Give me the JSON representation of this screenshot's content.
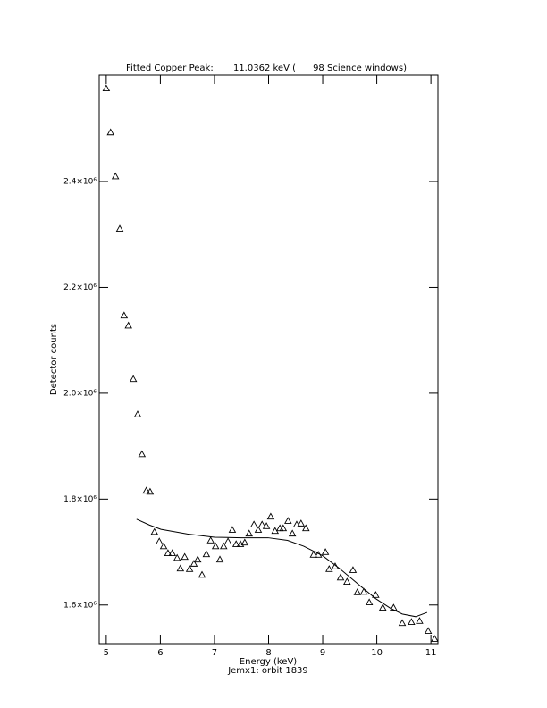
{
  "chart_data": {
    "type": "scatter",
    "title": "Fitted Copper Peak:       11.0362 keV (      98 Science windows)",
    "xlabel": "Energy (keV)",
    "subtitle": "Jemx1: orbit 1839",
    "ylabel": "Detector counts",
    "xlim": [
      4.87,
      11.13
    ],
    "ylim": [
      1527000,
      2601000
    ],
    "xticks": [
      5,
      6,
      7,
      8,
      9,
      10,
      11
    ],
    "yticks": [
      {
        "value": 1600000,
        "label": "1.6×10⁶"
      },
      {
        "value": 1800000,
        "label": "1.8×10⁶"
      },
      {
        "value": 2000000,
        "label": "2.0×10⁶"
      },
      {
        "value": 2200000,
        "label": "2.2×10⁶"
      },
      {
        "value": 2400000,
        "label": "2.4×10⁶"
      }
    ],
    "color": "#000000",
    "series": [
      {
        "marker": "triangle",
        "x": [
          5.0,
          5.08,
          5.17,
          5.25,
          5.33,
          5.41,
          5.5,
          5.58,
          5.66,
          5.74,
          5.81,
          5.89,
          5.98,
          6.06,
          6.14,
          6.22,
          6.31,
          6.37,
          6.45,
          6.54,
          6.62,
          6.69,
          6.77,
          6.85,
          6.93,
          7.02,
          7.1,
          7.17,
          7.25,
          7.33,
          7.4,
          7.48,
          7.56,
          7.64,
          7.73,
          7.81,
          7.88,
          7.96,
          8.04,
          8.12,
          8.21,
          8.27,
          8.36,
          8.44,
          8.52,
          8.6,
          8.69,
          8.83,
          8.92,
          9.05,
          9.12,
          9.23,
          9.33,
          9.45,
          9.56,
          9.64,
          9.76,
          9.86,
          9.98,
          10.11,
          10.31,
          10.47,
          10.64,
          10.79,
          10.95,
          11.07
        ],
        "values": [
          2576000,
          2493000,
          2410000,
          2311000,
          2147000,
          2128000,
          2027000,
          1960000,
          1885000,
          1816000,
          1814000,
          1738000,
          1720000,
          1711000,
          1698000,
          1698000,
          1689000,
          1669000,
          1691000,
          1668000,
          1678000,
          1686000,
          1657000,
          1696000,
          1722000,
          1711000,
          1686000,
          1711000,
          1720000,
          1742000,
          1715000,
          1715000,
          1718000,
          1735000,
          1752000,
          1742000,
          1752000,
          1749000,
          1767000,
          1740000,
          1745000,
          1745000,
          1759000,
          1735000,
          1752000,
          1754000,
          1745000,
          1695000,
          1695000,
          1700000,
          1668000,
          1673000,
          1652000,
          1644000,
          1666000,
          1624000,
          1625000,
          1605000,
          1619000,
          1595000,
          1595000,
          1566000,
          1568000,
          1570000,
          1551000,
          1536000
        ]
      },
      {
        "marker": "line",
        "x": [
          5.56,
          5.8,
          6.01,
          6.5,
          7.0,
          7.5,
          7.99,
          8.35,
          8.65,
          9.0,
          9.31,
          9.65,
          9.98,
          10.25,
          10.47,
          10.72,
          10.93
        ],
        "values": [
          1762000,
          1751000,
          1743000,
          1734000,
          1728000,
          1727000,
          1727000,
          1722000,
          1711000,
          1693000,
          1669000,
          1640000,
          1612000,
          1594000,
          1583000,
          1578000,
          1586000
        ]
      }
    ]
  }
}
